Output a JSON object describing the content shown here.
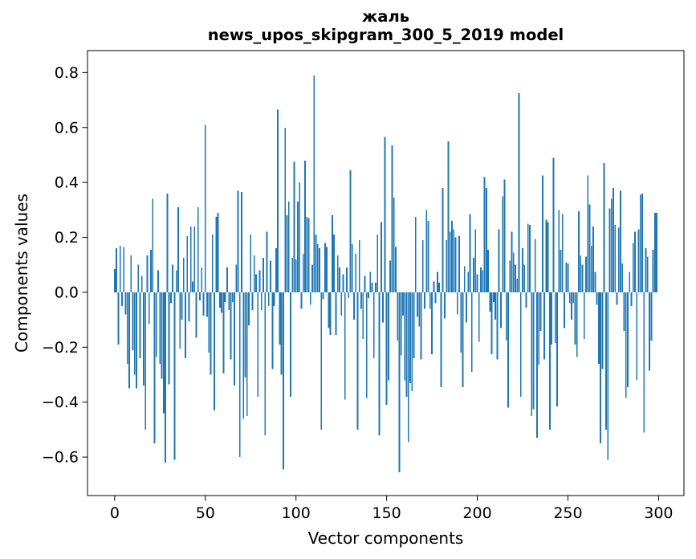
{
  "figure": {
    "title_line1": "жаль",
    "title_line2": "news_upos_skipgram_300_5_2019 model",
    "background": "#ffffff"
  },
  "chart_data": {
    "type": "bar",
    "title": "жаль\nnews_upos_skipgram_300_5_2019 model",
    "xlabel": "Vector components",
    "ylabel": "Components values",
    "bar_color": "#1f77b4",
    "axis_color": "#000000",
    "grid": false,
    "legend": null,
    "x_start": 0,
    "bar_width": 0.8,
    "xlim": [
      -15,
      314
    ],
    "ylim": [
      -0.74,
      0.88
    ],
    "xticks": [
      {
        "v": 0,
        "label": "0"
      },
      {
        "v": 50,
        "label": "50"
      },
      {
        "v": 100,
        "label": "100"
      },
      {
        "v": 150,
        "label": "150"
      },
      {
        "v": 200,
        "label": "200"
      },
      {
        "v": 250,
        "label": "250"
      },
      {
        "v": 300,
        "label": "300"
      }
    ],
    "yticks": [
      {
        "v": 0.8,
        "label": "0.8"
      },
      {
        "v": 0.6,
        "label": "0.6"
      },
      {
        "v": 0.4,
        "label": "0.4"
      },
      {
        "v": 0.2,
        "label": "0.2"
      },
      {
        "v": 0.0,
        "label": "0.0"
      },
      {
        "v": -0.2,
        "label": "−0.2"
      },
      {
        "v": -0.4,
        "label": "−0.4"
      },
      {
        "v": -0.6,
        "label": "−0.6"
      }
    ],
    "values": [
      0.085,
      0.16,
      -0.19,
      0.17,
      -0.05,
      0.165,
      -0.08,
      -0.26,
      -0.35,
      0.135,
      -0.21,
      -0.3,
      -0.35,
      0.1,
      -0.24,
      0.06,
      -0.34,
      -0.5,
      0.135,
      -0.115,
      0.155,
      0.34,
      -0.55,
      -0.235,
      0.08,
      -0.26,
      -0.315,
      -0.44,
      -0.62,
      0.36,
      -0.335,
      -0.04,
      0.1,
      -0.61,
      0.08,
      0.31,
      -0.205,
      -0.1,
      0.125,
      -0.24,
      0.205,
      -0.105,
      0.24,
      0.04,
      0.24,
      -0.165,
      0.31,
      -0.03,
      0.09,
      -0.085,
      0.61,
      -0.09,
      -0.22,
      -0.3,
      0.21,
      -0.43,
      0.275,
      0.29,
      -0.055,
      -0.075,
      -0.295,
      -0.035,
      0.09,
      -0.065,
      -0.245,
      -0.035,
      -0.34,
      0.1,
      0.37,
      -0.6,
      0.365,
      -0.46,
      -0.31,
      -0.45,
      -0.12,
      0.21,
      -0.065,
      0.135,
      0.065,
      -0.38,
      0.08,
      -0.065,
      0.125,
      -0.52,
      0.22,
      -0.05,
      0.115,
      -0.28,
      -0.05,
      0.16,
      0.665,
      -0.19,
      -0.3,
      -0.645,
      0.6,
      0.28,
      0.33,
      -0.38,
      0.125,
      0.475,
      0.12,
      0.33,
      0.4,
      -0.06,
      0.14,
      0.48,
      0.275,
      0.27,
      -0.045,
      0.1,
      0.79,
      0.21,
      0.175,
      0.16,
      -0.5,
      -0.025,
      0.18,
      0.165,
      -0.13,
      -0.155,
      0.28,
      0.21,
      -0.155,
      0.135,
      0.09,
      -0.085,
      0.065,
      -0.39,
      0.09,
      -0.02,
      0.445,
      0.175,
      -0.1,
      0.14,
      -0.5,
      0.19,
      -0.06,
      -0.17,
      0.06,
      -0.385,
      -0.02,
      0.075,
      0.035,
      -0.24,
      0.035,
      0.21,
      -0.52,
      0.255,
      -0.11,
      0.565,
      -0.41,
      -0.32,
      0.115,
      0.535,
      0.345,
      0.165,
      -0.175,
      -0.655,
      -0.23,
      -0.085,
      -0.32,
      -0.38,
      -0.545,
      -0.33,
      -0.36,
      -0.24,
      0.275,
      -0.09,
      -0.125,
      -0.245,
      0.19,
      -0.06,
      0.3,
      0.26,
      -0.06,
      -0.225,
      0.04,
      -0.04,
      0.075,
      0.035,
      -0.345,
      0.38,
      -0.095,
      0.19,
      0.55,
      0.22,
      0.26,
      0.23,
      0.2,
      -0.08,
      0.205,
      -0.22,
      -0.345,
      0.095,
      -0.11,
      0.075,
      0.285,
      -0.29,
      0.125,
      0.23,
      0.065,
      -0.18,
      0.09,
      0.08,
      0.42,
      0.38,
      0.155,
      -0.07,
      -0.225,
      -0.035,
      -0.1,
      -0.245,
      0.23,
      -0.13,
      0.35,
      0.41,
      -0.175,
      -0.42,
      0.115,
      0.22,
      0.145,
      0.1,
      0.05,
      0.725,
      -0.38,
      0.16,
      0.1,
      -0.055,
      0.25,
      0.245,
      -0.45,
      -0.425,
      0.195,
      -0.53,
      -0.265,
      -0.14,
      0.425,
      -0.245,
      0.265,
      0.255,
      -0.5,
      -0.19,
      0.49,
      -0.185,
      -0.415,
      0.3,
      0.155,
      0.285,
      -0.13,
      0.11,
      0.105,
      -0.04,
      -0.1,
      -0.04,
      -0.19,
      -0.235,
      0.295,
      0.135,
      0.1,
      -0.17,
      0.13,
      0.425,
      0.32,
      0.17,
      0.24,
      0.075,
      -0.045,
      -0.26,
      -0.55,
      -0.28,
      0.47,
      -0.5,
      -0.61,
      0.305,
      0.34,
      0.38,
      0.245,
      -0.045,
      0.235,
      0.37,
      0.105,
      -0.14,
      -0.385,
      -0.345,
      0.075,
      -0.05,
      0.18,
      0.22,
      -0.32,
      0.23,
      0.355,
      0.36,
      -0.51,
      0.16,
      0.13,
      -0.285,
      -0.175,
      0.155,
      0.29,
      0.29
    ]
  }
}
